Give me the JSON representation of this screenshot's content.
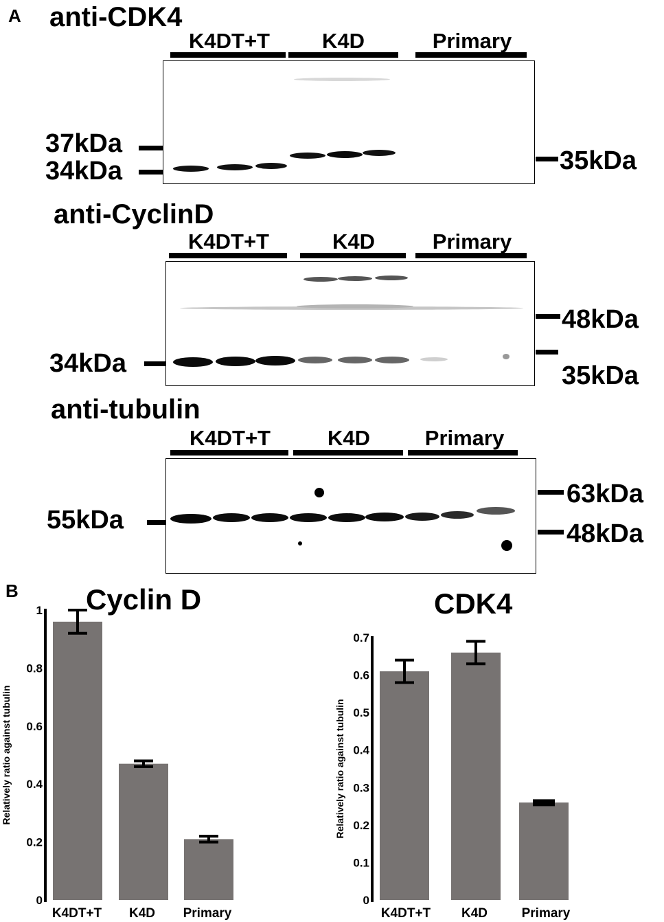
{
  "panel_a_letter": "A",
  "panel_b_letter": "B",
  "blots": {
    "cdk4": {
      "title": "anti-CDK4",
      "lanes": [
        "K4DT+T",
        "K4D",
        "Primary"
      ],
      "left_markers": [
        "37kDa",
        "34kDa"
      ],
      "right_markers": [
        "35kDa"
      ]
    },
    "cyclind": {
      "title": "anti-CyclinD",
      "lanes": [
        "K4DT+T",
        "K4D",
        "Primary"
      ],
      "left_markers": [
        "34kDa"
      ],
      "right_markers": [
        "48kDa",
        "35kDa"
      ]
    },
    "tubulin": {
      "title": "anti-tubulin",
      "lanes": [
        "K4DT+T",
        "K4D",
        "Primary"
      ],
      "left_markers": [
        "55kDa"
      ],
      "right_markers": [
        "63kDa",
        "48kDa"
      ]
    }
  },
  "chart_data": [
    {
      "type": "bar",
      "title": "Cyclin D",
      "ylabel": "Relatively ratio against tubulin",
      "xlabel": "",
      "categories": [
        "K4DT+T",
        "K4D",
        "Primary"
      ],
      "values": [
        0.96,
        0.47,
        0.21
      ],
      "errors": [
        0.04,
        0.01,
        0.01
      ],
      "ylim": [
        0,
        1
      ],
      "yticks": [
        0,
        0.2,
        0.4,
        0.6,
        0.8,
        1
      ],
      "ytick_labels": [
        "0",
        "0.2",
        "0.4",
        "0.6",
        "0.8",
        "1"
      ],
      "bar_color": "#777372",
      "grid": false
    },
    {
      "type": "bar",
      "title": "CDK4",
      "ylabel": "Relatively ratio against tubulin",
      "xlabel": "",
      "categories": [
        "K4DT+T",
        "K4D",
        "Primary"
      ],
      "values": [
        0.61,
        0.66,
        0.26
      ],
      "errors": [
        0.03,
        0.03,
        0.005
      ],
      "ylim": [
        0,
        0.7
      ],
      "yticks": [
        0,
        0.1,
        0.2,
        0.3,
        0.4,
        0.5,
        0.6,
        0.7
      ],
      "ytick_labels": [
        "0",
        "0.1",
        "0.2",
        "0.3",
        "0.4",
        "0.5",
        "0.6",
        "0.7"
      ],
      "bar_color": "#777372",
      "grid": false
    }
  ]
}
